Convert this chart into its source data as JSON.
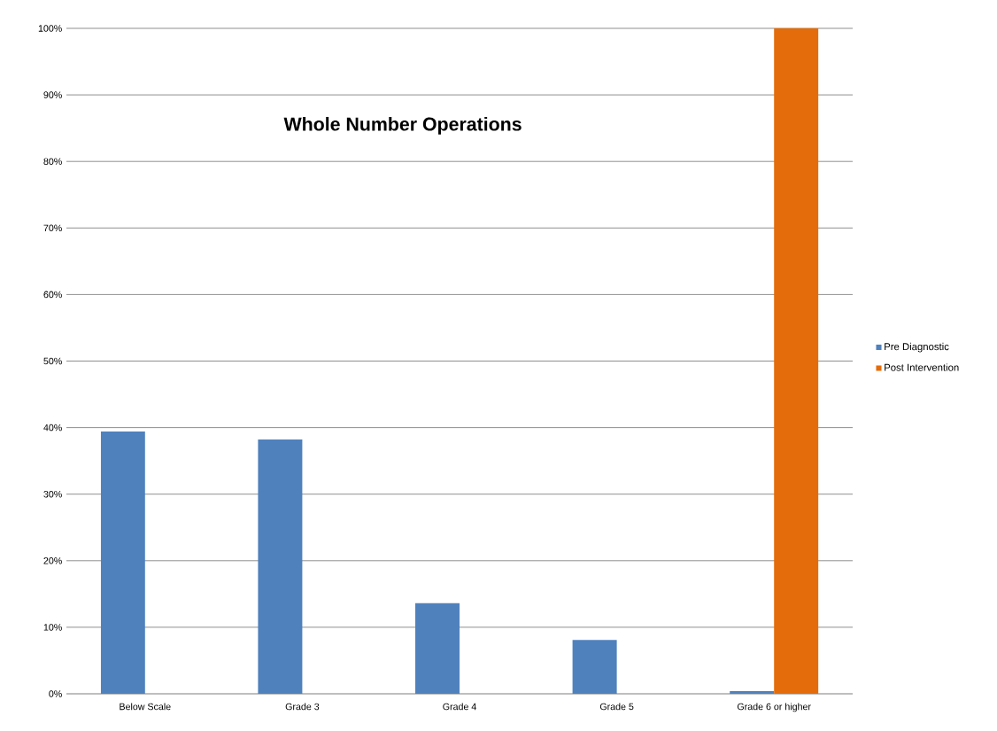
{
  "chart_data": {
    "type": "bar",
    "title": "Whole Number Operations",
    "categories": [
      "Below Scale",
      "Grade 3",
      "Grade 4",
      "Grade 5",
      "Grade 6 or higher"
    ],
    "series": [
      {
        "name": "Pre Diagnostic",
        "color": "#4f81bd",
        "values": [
          39.4,
          38.2,
          13.6,
          8.1,
          0.4
        ]
      },
      {
        "name": "Post Intervention",
        "color": "#e46c0a",
        "values": [
          0,
          0,
          0,
          0,
          100
        ]
      }
    ],
    "ylim": [
      0,
      100
    ],
    "yticks": [
      {
        "value": 0,
        "label": "0%"
      },
      {
        "value": 10,
        "label": "10%"
      },
      {
        "value": 20,
        "label": "20%"
      },
      {
        "value": 30,
        "label": "30%"
      },
      {
        "value": 40,
        "label": "40%"
      },
      {
        "value": 50,
        "label": "50%"
      },
      {
        "value": 60,
        "label": "60%"
      },
      {
        "value": 70,
        "label": "70%"
      },
      {
        "value": 80,
        "label": "80%"
      },
      {
        "value": 90,
        "label": "90%"
      },
      {
        "value": 100,
        "label": "100%"
      }
    ],
    "grid": "y",
    "legend": "right"
  }
}
